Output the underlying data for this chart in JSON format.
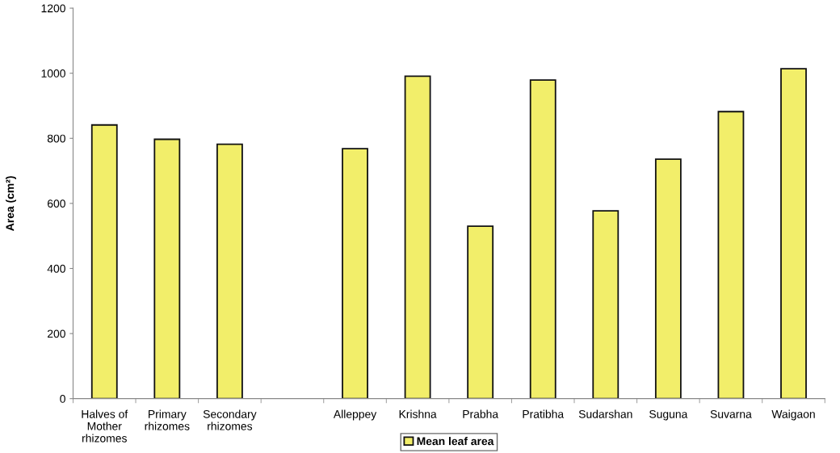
{
  "chart_data": {
    "type": "bar",
    "ylabel": "Area (cm²)",
    "categories": [
      "Halves of\nMother\nrhizomes",
      "Primary\nrhizomes",
      "Secondary\nrhizomes",
      null,
      "Alleppey",
      "Krishna",
      "Prabha",
      "Pratibha",
      "Sudarshan",
      "Suguna",
      "Suvarna",
      "Waigaon"
    ],
    "series": [
      {
        "name": "Mean leaf area",
        "color": "#f2ee6a",
        "values": [
          841,
          797,
          782,
          null,
          768,
          991,
          530,
          979,
          577,
          736,
          882,
          1014
        ]
      }
    ],
    "ylim": [
      0,
      1200
    ],
    "yticks": [
      0,
      200,
      400,
      600,
      800,
      1000,
      1200
    ],
    "grid": false,
    "legend": "bottom"
  }
}
